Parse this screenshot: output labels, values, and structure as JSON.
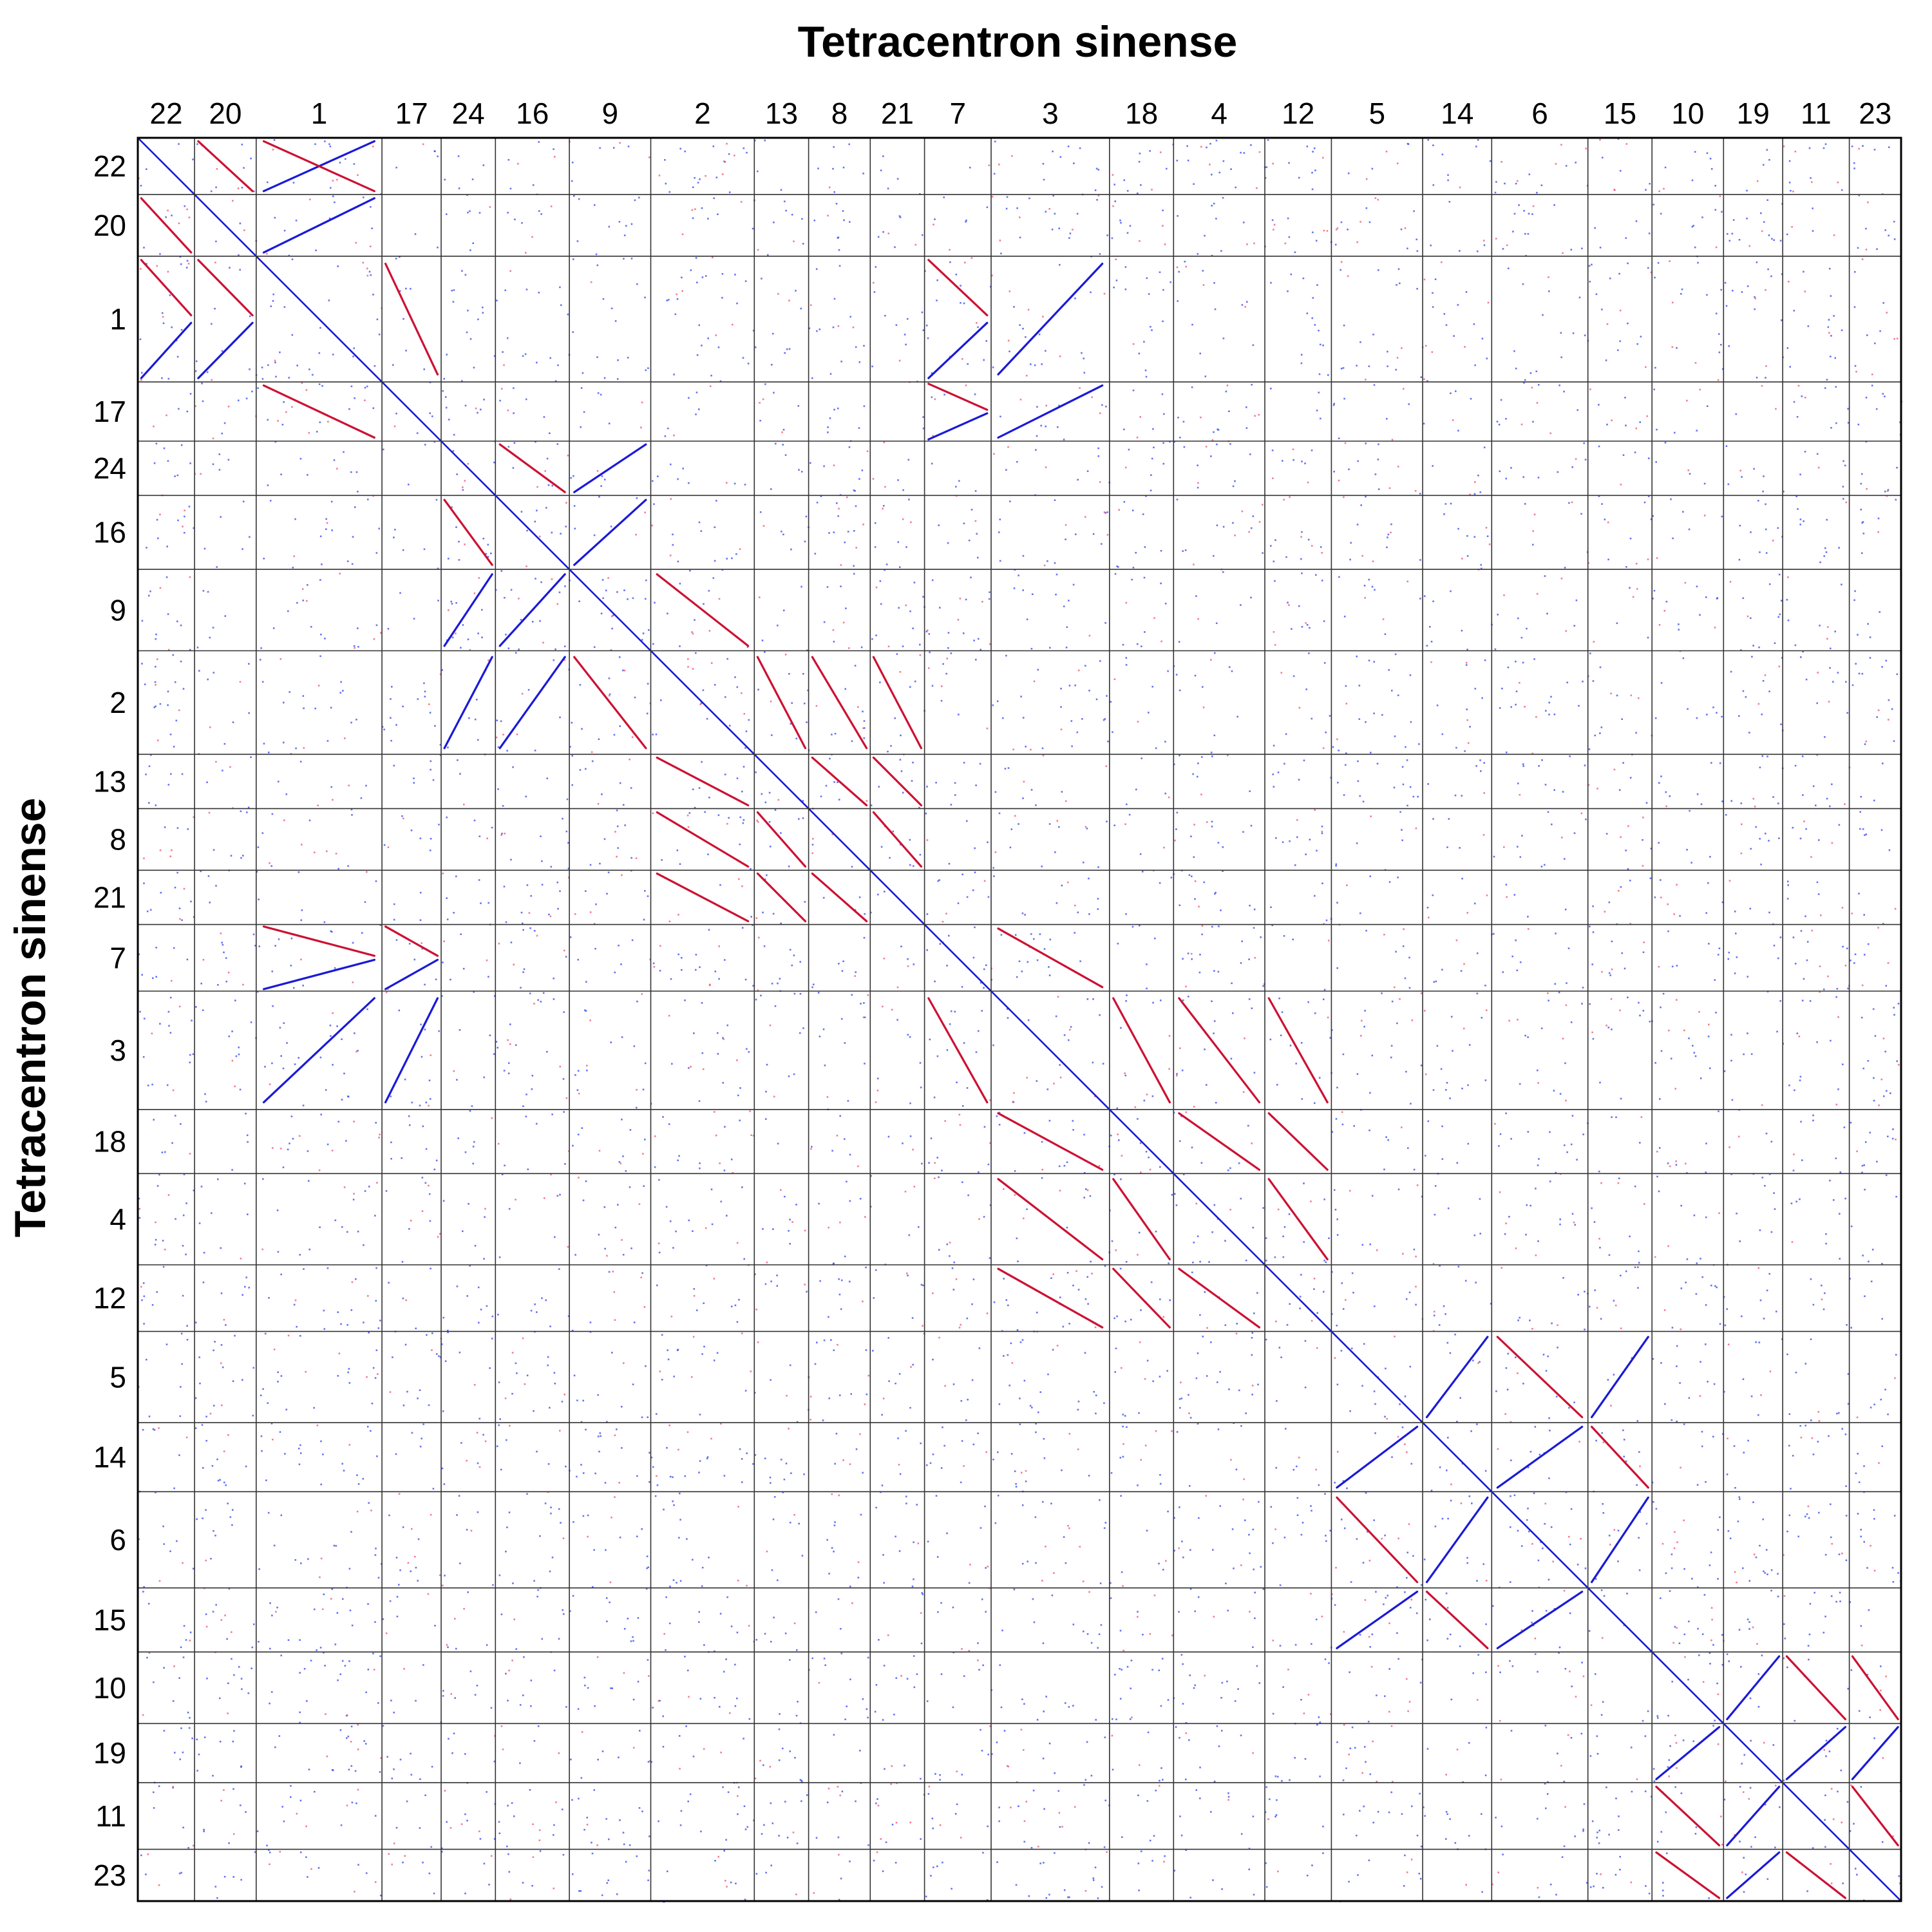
{
  "chart_data": {
    "type": "scatter",
    "subtype": "self-synteny dotplot",
    "title": "Tetracentron sinense",
    "xlabel": "",
    "ylabel": "Tetracentron sinense",
    "chromosomes": [
      "22",
      "20",
      "1",
      "17",
      "24",
      "16",
      "9",
      "2",
      "13",
      "8",
      "21",
      "7",
      "3",
      "18",
      "4",
      "12",
      "5",
      "14",
      "6",
      "15",
      "10",
      "19",
      "11",
      "23"
    ],
    "chromosome_sizes": [
      23,
      25,
      51,
      24,
      22,
      30,
      33,
      42,
      22,
      25,
      22,
      27,
      48,
      26,
      37,
      27,
      37,
      28,
      39,
      26,
      29,
      24,
      27,
      21
    ],
    "axis_units": "relative chromosome length (chromosome-size order along each axis)",
    "grid": true,
    "colors": {
      "forward": "#cc1133",
      "reverse": "#1a1ad6",
      "noise_blue": "#3344ee",
      "noise_red": "#ee4466",
      "frame": "#000000"
    },
    "synteny_blocks": [
      {
        "x1": "1",
        "x2": "22",
        "y": "22",
        "orientation": "reverse"
      },
      {
        "x": "20",
        "y": "22",
        "orientation": "forward"
      },
      {
        "x": "1",
        "y": "22",
        "orientation": "forward"
      },
      {
        "x": "22",
        "y": "20",
        "orientation": "forward"
      },
      {
        "x": "20",
        "y": "20",
        "orientation": "self"
      },
      {
        "x": "1",
        "y": "20",
        "orientation": "reverse"
      },
      {
        "x": "22",
        "y": "1",
        "orientation": "mixed"
      },
      {
        "x": "20",
        "y": "1",
        "orientation": "mixed"
      },
      {
        "x": "1",
        "y": "1",
        "orientation": "self"
      },
      {
        "x": "17",
        "y": "1",
        "orientation": "forward"
      },
      {
        "x": "1",
        "y": "17",
        "orientation": "forward"
      },
      {
        "x": "17",
        "y": "17",
        "orientation": "self"
      },
      {
        "x": "7",
        "y": "1",
        "orientation": "mixed"
      },
      {
        "x": "7",
        "y": "17",
        "orientation": "mixed"
      },
      {
        "x": "3",
        "y": "1",
        "orientation": "reverse"
      },
      {
        "x": "3",
        "y": "17",
        "orientation": "reverse"
      },
      {
        "x": "1",
        "y": "7",
        "orientation": "mixed"
      },
      {
        "x": "17",
        "y": "7",
        "orientation": "mixed"
      },
      {
        "x": "1",
        "y": "3",
        "orientation": "reverse"
      },
      {
        "x": "17",
        "y": "3",
        "orientation": "reverse"
      },
      {
        "x": "16",
        "y": "24",
        "orientation": "forward"
      },
      {
        "x": "9",
        "y": "24",
        "orientation": "reverse"
      },
      {
        "x": "24",
        "y": "16",
        "orientation": "forward"
      },
      {
        "x": "9",
        "y": "16",
        "orientation": "reverse"
      },
      {
        "x": "2",
        "y": "9",
        "orientation": "forward"
      },
      {
        "x": "9",
        "y": "2",
        "orientation": "forward"
      },
      {
        "x": "24",
        "y": "9",
        "orientation": "reverse"
      },
      {
        "x": "16",
        "y": "9",
        "orientation": "reverse"
      },
      {
        "x": "24",
        "y": "2",
        "orientation": "reverse"
      },
      {
        "x": "16",
        "y": "2",
        "orientation": "reverse"
      },
      {
        "x": "13",
        "y": "2",
        "orientation": "forward"
      },
      {
        "x": "8",
        "y": "2",
        "orientation": "forward"
      },
      {
        "x": "21",
        "y": "2",
        "orientation": "forward"
      },
      {
        "x": "2",
        "y": "13",
        "orientation": "forward"
      },
      {
        "x": "8",
        "y": "13",
        "orientation": "forward"
      },
      {
        "x": "21",
        "y": "13",
        "orientation": "forward"
      },
      {
        "x": "2",
        "y": "8",
        "orientation": "forward"
      },
      {
        "x": "13",
        "y": "8",
        "orientation": "forward"
      },
      {
        "x": "21",
        "y": "8",
        "orientation": "forward"
      },
      {
        "x": "2",
        "y": "21",
        "orientation": "forward"
      },
      {
        "x": "13",
        "y": "21",
        "orientation": "forward"
      },
      {
        "x": "8",
        "y": "21",
        "orientation": "forward"
      },
      {
        "x": "3",
        "y": "7",
        "orientation": "forward"
      },
      {
        "x": "7",
        "y": "3",
        "orientation": "forward"
      },
      {
        "x": "18",
        "y": "3",
        "orientation": "forward"
      },
      {
        "x": "4",
        "y": "3",
        "orientation": "forward"
      },
      {
        "x": "12",
        "y": "3",
        "orientation": "forward"
      },
      {
        "x": "3",
        "y": "18",
        "orientation": "forward"
      },
      {
        "x": "4",
        "y": "18",
        "orientation": "forward"
      },
      {
        "x": "12",
        "y": "18",
        "orientation": "forward"
      },
      {
        "x": "3",
        "y": "4",
        "orientation": "forward"
      },
      {
        "x": "18",
        "y": "4",
        "orientation": "forward"
      },
      {
        "x": "12",
        "y": "4",
        "orientation": "forward"
      },
      {
        "x": "3",
        "y": "12",
        "orientation": "forward"
      },
      {
        "x": "18",
        "y": "12",
        "orientation": "forward"
      },
      {
        "x": "4",
        "y": "12",
        "orientation": "forward"
      },
      {
        "x": "14",
        "y": "5",
        "orientation": "reverse"
      },
      {
        "x": "6",
        "y": "5",
        "orientation": "forward"
      },
      {
        "x": "15",
        "y": "5",
        "orientation": "reverse"
      },
      {
        "x": "5",
        "y": "14",
        "orientation": "reverse"
      },
      {
        "x": "6",
        "y": "14",
        "orientation": "reverse"
      },
      {
        "x": "15",
        "y": "14",
        "orientation": "forward"
      },
      {
        "x": "5",
        "y": "6",
        "orientation": "forward"
      },
      {
        "x": "14",
        "y": "6",
        "orientation": "reverse"
      },
      {
        "x": "15",
        "y": "6",
        "orientation": "reverse"
      },
      {
        "x": "5",
        "y": "15",
        "orientation": "reverse"
      },
      {
        "x": "14",
        "y": "15",
        "orientation": "forward"
      },
      {
        "x": "6",
        "y": "15",
        "orientation": "reverse"
      },
      {
        "x": "19",
        "y": "10",
        "orientation": "reverse"
      },
      {
        "x": "11",
        "y": "10",
        "orientation": "forward"
      },
      {
        "x": "23",
        "y": "10",
        "orientation": "forward"
      },
      {
        "x": "10",
        "y": "19",
        "orientation": "reverse"
      },
      {
        "x": "11",
        "y": "19",
        "orientation": "reverse"
      },
      {
        "x": "23",
        "y": "19",
        "orientation": "reverse"
      },
      {
        "x": "10",
        "y": "11",
        "orientation": "forward"
      },
      {
        "x": "19",
        "y": "11",
        "orientation": "reverse"
      },
      {
        "x": "23",
        "y": "11",
        "orientation": "forward"
      },
      {
        "x": "10",
        "y": "23",
        "orientation": "forward"
      },
      {
        "x": "19",
        "y": "23",
        "orientation": "reverse"
      },
      {
        "x": "11",
        "y": "23",
        "orientation": "forward"
      }
    ]
  }
}
